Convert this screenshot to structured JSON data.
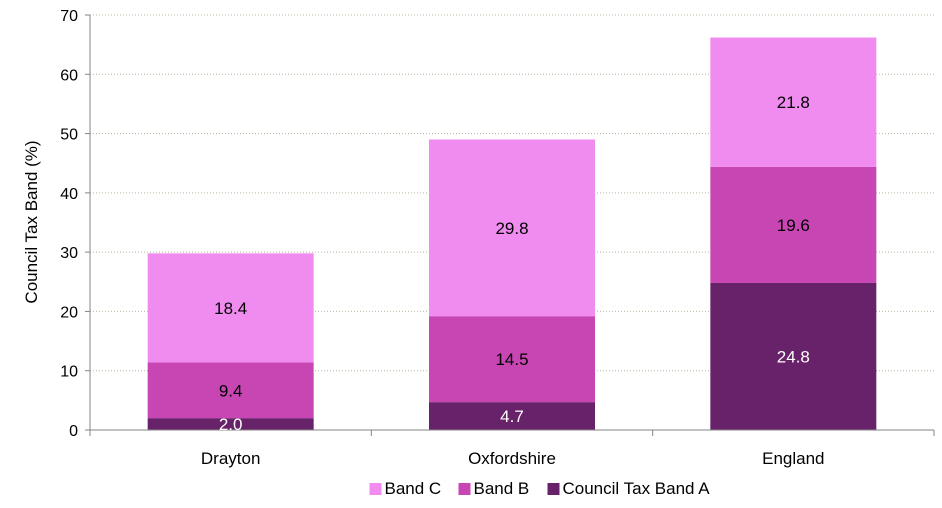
{
  "chart_data": {
    "type": "bar",
    "stacked": true,
    "categories": [
      "Drayton",
      "Oxfordshire",
      "England"
    ],
    "series": [
      {
        "name": "Council Tax Band A",
        "values": [
          2.0,
          4.7,
          24.8
        ],
        "color": "#68226A",
        "label_color": "#ffffff"
      },
      {
        "name": "Band B",
        "values": [
          9.4,
          14.5,
          19.6
        ],
        "color": "#C846B4",
        "label_color": "#000000"
      },
      {
        "name": "Band C",
        "values": [
          18.4,
          29.8,
          21.8
        ],
        "color": "#F08CF0",
        "label_color": "#000000"
      }
    ],
    "ylabel": "Council Tax Band (%)",
    "xlabel": "",
    "ylim": [
      0,
      70
    ],
    "yticks": [
      0,
      10,
      20,
      30,
      40,
      50,
      60,
      70
    ],
    "grid": true,
    "legend_position": "bottom",
    "legend_order": [
      "Band C",
      "Band B",
      "Council Tax Band A"
    ]
  }
}
